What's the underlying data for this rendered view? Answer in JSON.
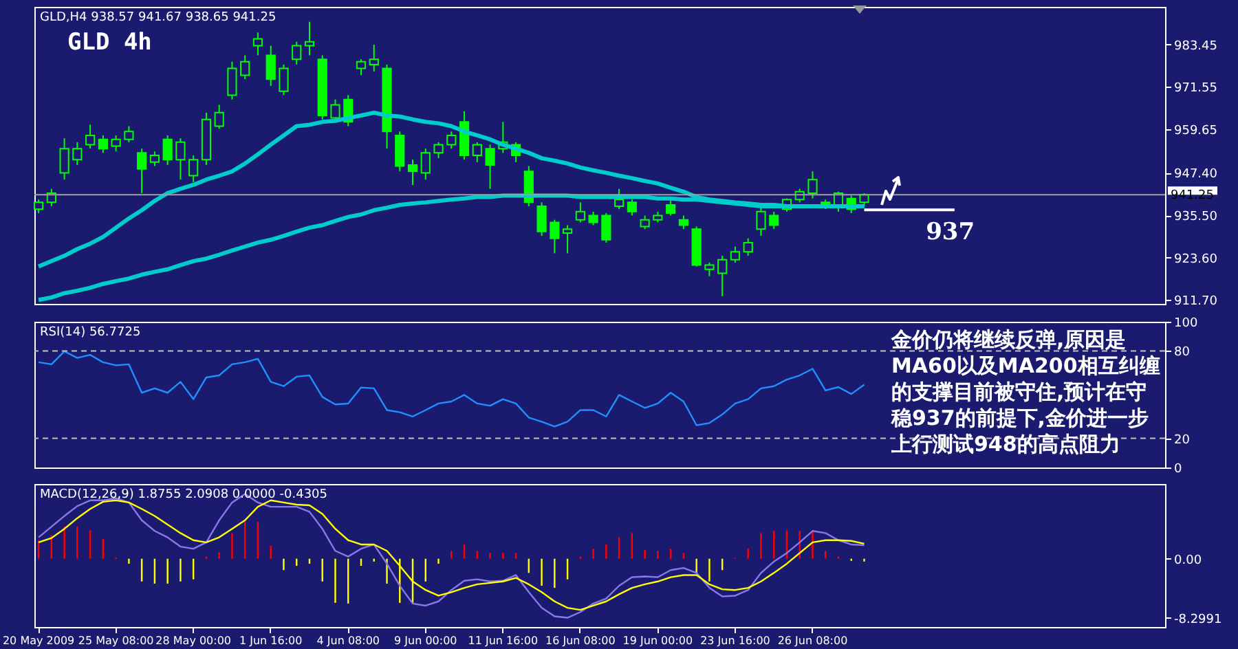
{
  "chart_data": [
    {
      "type": "candlestick",
      "title": "GLD 4h",
      "subtitle": "GLD,H4 938.57 941.67 938.65 941.25",
      "color": "#00ff00",
      "categories": [
        null,
        null,
        null,
        null,
        null,
        null,
        null,
        null,
        null,
        null,
        null,
        null,
        null,
        null,
        null,
        null,
        null,
        null,
        null,
        null,
        null,
        null,
        null,
        null,
        null,
        null,
        null,
        null,
        null,
        null,
        null,
        null,
        null,
        null,
        null,
        null,
        null,
        null,
        null,
        null,
        null,
        null,
        null,
        null,
        null,
        null,
        null,
        null,
        null,
        null,
        null,
        null,
        null,
        null,
        null,
        null,
        null,
        null,
        null,
        null,
        null,
        null,
        null,
        null,
        null,
        null,
        null,
        null,
        null,
        null,
        null,
        null,
        null,
        null,
        null,
        null,
        null,
        null,
        null,
        null,
        null,
        null,
        null,
        null,
        null,
        null,
        null,
        null
      ],
      "ohlc": [
        [
          937.2,
          939.9,
          936.1,
          939.1
        ],
        [
          939.1,
          942.9,
          938.0,
          941.7
        ],
        [
          947.4,
          957.1,
          945.5,
          954.2
        ],
        [
          951.1,
          956.0,
          949.6,
          954.2
        ],
        [
          955.3,
          960.9,
          954.2,
          957.9
        ],
        [
          956.8,
          957.9,
          953.0,
          954.2
        ],
        [
          954.9,
          957.9,
          953.4,
          956.8
        ],
        [
          956.8,
          960.5,
          956.0,
          959.0
        ],
        [
          953.0,
          954.2,
          941.7,
          948.5
        ],
        [
          950.4,
          953.4,
          949.3,
          952.3
        ],
        [
          956.8,
          957.9,
          949.6,
          951.1
        ],
        [
          951.1,
          957.1,
          945.5,
          956.0
        ],
        [
          946.6,
          952.3,
          944.8,
          951.1
        ],
        [
          951.1,
          964.3,
          949.6,
          962.4
        ],
        [
          960.5,
          966.5,
          959.8,
          964.3
        ],
        [
          969.2,
          978.6,
          968.0,
          976.7
        ],
        [
          974.8,
          980.4,
          973.7,
          978.6
        ],
        [
          983.1,
          986.8,
          980.4,
          985.0
        ],
        [
          980.4,
          983.1,
          971.8,
          973.7
        ],
        [
          970.3,
          977.8,
          969.2,
          976.7
        ],
        [
          979.3,
          984.2,
          977.8,
          983.1
        ],
        [
          983.1,
          989.8,
          980.4,
          984.2
        ],
        [
          979.3,
          980.4,
          962.4,
          963.5
        ],
        [
          962.8,
          968.0,
          961.7,
          966.5
        ],
        [
          968.0,
          969.2,
          960.5,
          961.7
        ],
        [
          976.7,
          979.3,
          974.8,
          978.6
        ],
        [
          977.8,
          983.4,
          975.9,
          979.3
        ],
        [
          976.7,
          977.8,
          954.2,
          959.0
        ],
        [
          957.9,
          959.0,
          947.8,
          949.3
        ],
        [
          949.6,
          951.1,
          944.0,
          947.8
        ],
        [
          947.4,
          954.2,
          945.5,
          953.0
        ],
        [
          953.0,
          956.0,
          951.5,
          955.3
        ],
        [
          955.3,
          959.0,
          954.2,
          957.9
        ],
        [
          961.7,
          964.7,
          951.1,
          952.3
        ],
        [
          952.3,
          956.0,
          950.4,
          955.3
        ],
        [
          954.2,
          955.3,
          942.9,
          949.6
        ],
        [
          954.2,
          961.7,
          953.0,
          956.0
        ],
        [
          955.3,
          956.0,
          950.4,
          952.3
        ],
        [
          947.8,
          949.3,
          938.0,
          939.1
        ],
        [
          938.0,
          939.1,
          929.7,
          930.9
        ],
        [
          933.5,
          934.2,
          924.8,
          929.0
        ],
        [
          930.5,
          932.7,
          924.8,
          931.6
        ],
        [
          934.2,
          939.1,
          933.5,
          936.5
        ],
        [
          935.4,
          936.5,
          932.7,
          933.5
        ],
        [
          935.4,
          936.1,
          927.8,
          928.6
        ],
        [
          938.0,
          942.9,
          937.2,
          939.9
        ],
        [
          939.1,
          939.9,
          935.4,
          936.5
        ],
        [
          932.3,
          935.4,
          931.6,
          934.2
        ],
        [
          934.2,
          936.5,
          933.5,
          935.4
        ],
        [
          938.4,
          939.9,
          935.4,
          936.1
        ],
        [
          934.2,
          935.4,
          931.6,
          932.7
        ],
        [
          931.6,
          932.3,
          921.1,
          921.5
        ],
        [
          920.3,
          922.2,
          918.4,
          921.5
        ],
        [
          919.2,
          924.1,
          912.8,
          923.0
        ],
        [
          923.0,
          926.7,
          922.2,
          925.2
        ],
        [
          925.2,
          929.0,
          924.1,
          927.8
        ],
        [
          931.6,
          938.0,
          929.7,
          936.5
        ],
        [
          935.4,
          936.5,
          931.6,
          932.7
        ],
        [
          937.2,
          940.2,
          936.5,
          939.9
        ],
        [
          939.9,
          942.9,
          939.1,
          942.1
        ],
        [
          941.7,
          947.8,
          940.2,
          945.5
        ],
        [
          939.1,
          939.9,
          937.2,
          938.0
        ],
        [
          938.0,
          942.1,
          936.5,
          941.7
        ],
        [
          940.2,
          941.0,
          936.1,
          937.2
        ],
        [
          939.1,
          941.67,
          938.0,
          941.25
        ],
        null,
        null,
        null,
        null,
        null,
        null,
        null,
        null,
        null,
        null,
        null,
        null,
        null,
        null,
        null,
        null,
        null,
        null,
        null,
        null,
        null,
        null,
        null
      ],
      "series": [
        {
          "type": "line",
          "color": "#00cccc",
          "values": [
            921.1,
            922.6,
            924.1,
            926.0,
            927.5,
            929.4,
            932.0,
            934.6,
            936.9,
            939.5,
            941.7,
            942.9,
            944.0,
            945.5,
            946.6,
            947.8,
            950.0,
            952.6,
            955.3,
            957.9,
            960.5,
            960.9,
            961.7,
            962.0,
            962.8,
            963.5,
            964.3,
            963.5,
            963.2,
            962.4,
            961.7,
            961.3,
            960.5,
            959.0,
            957.9,
            956.8,
            955.3,
            954.2,
            953.0,
            951.5,
            950.8,
            950.0,
            948.9,
            948.1,
            947.4,
            946.6,
            945.9,
            945.1,
            944.4,
            943.2,
            942.1,
            940.6,
            939.9,
            939.5,
            939.1,
            938.8,
            938.4,
            938.4,
            938.0,
            938.0,
            938.0,
            938.0,
            938.0,
            938.0,
            938.0,
            null,
            null,
            null,
            null,
            null,
            null,
            null,
            null,
            null,
            null,
            null,
            null,
            null,
            null,
            null,
            null,
            null,
            null,
            null,
            null,
            null,
            null,
            null
          ]
        },
        {
          "type": "line",
          "color": "#00cccc",
          "values": [
            911.7,
            912.4,
            913.6,
            914.3,
            915.1,
            916.2,
            917.0,
            917.7,
            918.8,
            919.6,
            920.3,
            921.5,
            922.6,
            923.3,
            924.4,
            925.6,
            926.7,
            927.8,
            928.6,
            929.7,
            930.9,
            932.0,
            932.7,
            933.9,
            935.0,
            935.7,
            936.9,
            937.6,
            938.4,
            938.8,
            939.1,
            939.5,
            939.9,
            940.2,
            940.6,
            940.6,
            941.0,
            941.0,
            941.0,
            941.0,
            941.0,
            941.0,
            940.6,
            940.6,
            940.6,
            940.6,
            940.6,
            940.6,
            940.2,
            940.2,
            939.9,
            939.9,
            939.5,
            939.1,
            938.8,
            938.4,
            938.0,
            938.0,
            938.0,
            938.0,
            938.0,
            938.0,
            938.0,
            938.0,
            938.0,
            null,
            null,
            null,
            null,
            null,
            null,
            null,
            null,
            null,
            null,
            null,
            null,
            null,
            null,
            null,
            null,
            null,
            null,
            null,
            null,
            null,
            null,
            null
          ]
        },
        {
          "type": "line",
          "color": "#ffffff",
          "values": [
            null,
            null,
            null,
            null,
            null,
            null,
            null,
            null,
            null,
            null,
            null,
            null,
            null,
            null,
            null,
            null,
            null,
            null,
            null,
            null,
            null,
            null,
            null,
            null,
            null,
            null,
            null,
            null,
            null,
            null,
            null,
            null,
            null,
            null,
            null,
            null,
            null,
            null,
            null,
            null,
            null,
            null,
            null,
            null,
            null,
            null,
            null,
            null,
            null,
            null,
            null,
            null,
            null,
            null,
            null,
            null,
            null,
            null,
            null,
            null,
            null,
            null,
            null,
            null,
            937,
            937,
            937,
            937,
            937,
            937,
            937,
            937,
            null,
            null,
            null,
            null,
            null,
            null,
            null,
            null,
            null,
            null,
            null,
            null,
            null,
            null,
            null,
            null
          ]
        }
      ],
      "ylim": [
        910.6,
        994.0
      ],
      "yticks": [
        {
          "value": 911.7,
          "label": "911.70"
        },
        {
          "value": 923.6,
          "label": "923.60"
        },
        {
          "value": 935.5,
          "label": "935.50"
        },
        {
          "value": 947.4,
          "label": "947.40"
        },
        {
          "value": 959.65,
          "label": "959.65"
        },
        {
          "value": 971.55,
          "label": "971.55"
        },
        {
          "value": 983.45,
          "label": "983.45"
        }
      ],
      "ref_lines": [
        {
          "axis": "y",
          "value": 941.25,
          "label": "941.25",
          "color": "#a0a0a0"
        }
      ],
      "annotations": [
        "937"
      ],
      "tick_labels": "y"
    },
    {
      "type": "line",
      "title": "RSI(14) 56.7725",
      "categories": [
        null,
        null,
        null,
        null,
        null,
        null,
        null,
        null,
        null,
        null,
        null,
        null,
        null,
        null,
        null,
        null,
        null,
        null,
        null,
        null,
        null,
        null,
        null,
        null,
        null,
        null,
        null,
        null,
        null,
        null,
        null,
        null,
        null,
        null,
        null,
        null,
        null,
        null,
        null,
        null,
        null,
        null,
        null,
        null,
        null,
        null,
        null,
        null,
        null,
        null,
        null,
        null,
        null,
        null,
        null,
        null,
        null,
        null,
        null,
        null,
        null,
        null,
        null,
        null,
        null,
        null,
        null,
        null,
        null,
        null,
        null,
        null,
        null,
        null,
        null,
        null,
        null,
        null,
        null,
        null,
        null,
        null,
        null,
        null,
        null,
        null,
        null,
        null
      ],
      "series": [
        {
          "color": "#1e90ff",
          "values": [
            72.2,
            70.8,
            79.7,
            75.2,
            77.3,
            72.2,
            70.1,
            70.8,
            51.3,
            54.3,
            51.3,
            58.8,
            46.9,
            61.8,
            63.2,
            70.8,
            72.2,
            74.6,
            58.8,
            55.8,
            62.3,
            63.2,
            48.4,
            43.3,
            43.9,
            54.9,
            54.3,
            39.4,
            37.9,
            35.0,
            39.4,
            43.9,
            45.3,
            49.8,
            43.9,
            42.4,
            46.9,
            43.9,
            34.3,
            31.4,
            28.1,
            31.4,
            39.4,
            39.4,
            35.0,
            49.8,
            45.3,
            40.9,
            43.9,
            51.3,
            45.3,
            29.0,
            30.5,
            36.4,
            43.9,
            46.9,
            54.3,
            55.8,
            60.3,
            63.2,
            67.7,
            52.9,
            55.2,
            50.4,
            56.8,
            null,
            null,
            null,
            null,
            null,
            null,
            null,
            null,
            null,
            null,
            null,
            null,
            null,
            null,
            null,
            null,
            null,
            null,
            null,
            null,
            null,
            null,
            null
          ]
        }
      ],
      "ylim": [
        0,
        100
      ],
      "yticks": [
        0,
        20,
        80,
        100
      ],
      "ref_lines": [
        {
          "axis": "y",
          "value": 80,
          "color": "#c0c0c0",
          "line_style": "dashed"
        },
        {
          "axis": "y",
          "value": 20,
          "color": "#c0c0c0",
          "line_style": "dashed"
        }
      ],
      "annotations": [
        "金价仍将继续反弹,原因是MA60以及MA200相互纠缠的支撑目前被守住,预计在守稳937的前提下,金价进一步上行测试948的高点阻力"
      ],
      "tick_labels": "y"
    },
    {
      "type": "bar",
      "title": "MACD(12,26,9) 1.8755 2.0908 0.0000 -0.4305",
      "categories": [
        "20 May 2009",
        null,
        null,
        null,
        null,
        null,
        "25 May 08:00",
        null,
        null,
        null,
        null,
        null,
        "28 May 00:00",
        null,
        null,
        null,
        null,
        null,
        "1 Jun 16:00",
        null,
        null,
        null,
        null,
        null,
        "4 Jun 08:00",
        null,
        null,
        null,
        null,
        null,
        "9 Jun 00:00",
        null,
        null,
        null,
        null,
        null,
        "11 Jun 16:00",
        null,
        null,
        null,
        null,
        null,
        "16 Jun 08:00",
        null,
        null,
        null,
        null,
        null,
        "19 Jun 00:00",
        null,
        null,
        null,
        null,
        null,
        "23 Jun 16:00",
        null,
        null,
        null,
        null,
        null,
        "26 Jun 08:00",
        null,
        null,
        null,
        null,
        null,
        null,
        null,
        null,
        null,
        null,
        null,
        null,
        null,
        null,
        null,
        null,
        null,
        null,
        null,
        null,
        null,
        null,
        null,
        null,
        null,
        null,
        null
      ],
      "values": [
        2.6,
        3.3,
        4.5,
        4.5,
        4.0,
        2.8,
        0.2,
        -0.7,
        -3.2,
        -3.5,
        -3.5,
        -3.2,
        -2.9,
        0.3,
        0.9,
        3.6,
        5.2,
        5.2,
        1.8,
        -1.6,
        -1.0,
        -0.7,
        -3.2,
        -6.2,
        -6.3,
        -1.0,
        -0.4,
        -3.5,
        -6.2,
        -6.2,
        -3.2,
        -0.7,
        1.1,
        2.0,
        1.1,
        0.8,
        0.8,
        0.8,
        -2.0,
        -3.8,
        -4.1,
        -2.9,
        0.3,
        1.4,
        2.0,
        3.0,
        3.6,
        1.2,
        1.1,
        1.4,
        0.8,
        -2.0,
        -3.2,
        -1.6,
        0.1,
        1.4,
        3.6,
        3.9,
        4.0,
        3.9,
        4.0,
        1.1,
        0.3,
        -0.3,
        -0.4,
        null,
        null,
        null,
        null,
        null,
        null,
        null,
        null,
        null,
        null,
        null,
        null,
        null,
        null,
        null,
        null,
        null,
        null,
        null,
        null,
        null,
        null,
        null
      ],
      "colors": [
        "#ff0000",
        "#ff0000",
        "#ff0000",
        "#ff0000",
        "#ff0000",
        "#ff0000",
        "#ff0000",
        "#ffff00",
        "#ffff00",
        "#ffff00",
        "#ffff00",
        "#ffff00",
        "#ffff00",
        "#ff0000",
        "#ff0000",
        "#ff0000",
        "#ff0000",
        "#ff0000",
        "#ff0000",
        "#ffff00",
        "#ffff00",
        "#ffff00",
        "#ffff00",
        "#ffff00",
        "#ffff00",
        "#ffff00",
        "#ffff00",
        "#ffff00",
        "#ffff00",
        "#ffff00",
        "#ffff00",
        "#ffff00",
        "#ff0000",
        "#ff0000",
        "#ff0000",
        "#ff0000",
        "#ff0000",
        "#ff0000",
        "#ffff00",
        "#ffff00",
        "#ffff00",
        "#ffff00",
        "#ff0000",
        "#ff0000",
        "#ff0000",
        "#ff0000",
        "#ff0000",
        "#ff0000",
        "#ff0000",
        "#ff0000",
        "#ff0000",
        "#ffff00",
        "#ffff00",
        "#ffff00",
        "#ff0000",
        "#ff0000",
        "#ff0000",
        "#ff0000",
        "#ff0000",
        "#ff0000",
        "#ff0000",
        "#ff0000",
        "#ff0000",
        "#ffff00",
        "#ffff00",
        null,
        null,
        null,
        null,
        null,
        null,
        null,
        null,
        null,
        null,
        null,
        null,
        null,
        null,
        null,
        null,
        null,
        null,
        null,
        null,
        null,
        null,
        null
      ],
      "series": [
        {
          "type": "line",
          "color": "#8878e8",
          "values": [
            3.0,
            4.5,
            6.0,
            7.4,
            8.2,
            8.2,
            8.5,
            7.9,
            5.4,
            3.9,
            3.0,
            1.7,
            1.4,
            2.3,
            5.4,
            7.9,
            9.1,
            7.9,
            7.3,
            7.3,
            7.3,
            6.6,
            4.2,
            1.1,
            0.3,
            1.4,
            2.0,
            -0.7,
            -3.8,
            -6.3,
            -6.6,
            -6.0,
            -4.4,
            -3.1,
            -2.9,
            -3.2,
            -3.1,
            -2.3,
            -4.7,
            -6.9,
            -8.1,
            -8.3,
            -7.5,
            -6.3,
            -5.6,
            -3.8,
            -2.6,
            -2.5,
            -2.6,
            -1.6,
            -1.3,
            -2.0,
            -4.1,
            -5.3,
            -5.2,
            -4.4,
            -2.0,
            -0.4,
            0.8,
            2.3,
            3.9,
            3.6,
            2.6,
            2.0,
            1.9,
            null,
            null,
            null,
            null,
            null,
            null,
            null,
            null,
            null,
            null,
            null,
            null,
            null,
            null,
            null,
            null,
            null,
            null,
            null,
            null,
            null,
            null,
            null
          ]
        },
        {
          "type": "line",
          "color": "#ffff00",
          "values": [
            2.3,
            2.9,
            4.2,
            5.7,
            7.0,
            8.0,
            8.2,
            7.9,
            7.0,
            6.0,
            4.8,
            3.6,
            2.6,
            2.3,
            3.0,
            4.2,
            5.4,
            7.3,
            8.2,
            7.9,
            7.6,
            7.5,
            6.3,
            4.2,
            2.6,
            2.0,
            2.0,
            1.1,
            -1.0,
            -3.2,
            -4.4,
            -5.2,
            -4.7,
            -4.1,
            -3.6,
            -3.4,
            -3.2,
            -2.7,
            -3.6,
            -4.7,
            -6.0,
            -6.9,
            -7.2,
            -6.6,
            -6.0,
            -5.0,
            -4.1,
            -3.6,
            -3.2,
            -2.6,
            -2.3,
            -2.3,
            -3.6,
            -4.3,
            -4.4,
            -4.1,
            -3.2,
            -2.0,
            -0.7,
            0.8,
            2.3,
            2.6,
            2.6,
            2.5,
            2.1,
            null,
            null,
            null,
            null,
            null,
            null,
            null,
            null,
            null,
            null,
            null,
            null,
            null,
            null,
            null,
            null,
            null,
            null,
            null,
            null,
            null,
            null,
            null
          ]
        }
      ],
      "ylim": [
        -9.6,
        10.5
      ],
      "yticks": [
        {
          "value": 0,
          "label": "0.00"
        },
        -8.2991
      ]
    }
  ]
}
